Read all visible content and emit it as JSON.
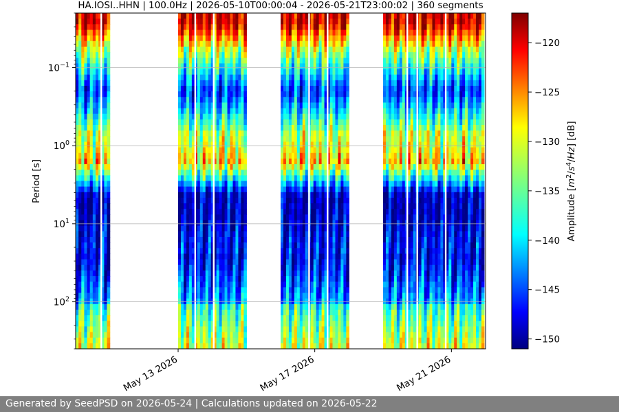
{
  "chart_data": {
    "type": "heatmap",
    "title": "HA.IOSI..HHN | 100.0Hz | 2026-05-10T00:00:04 - 2026-05-21T23:00:02 | 360 segments",
    "xlabel": "",
    "ylabel": "Period [s]",
    "x_range": [
      "2026-05-10T00:00:04",
      "2026-05-22T00:00:00"
    ],
    "x_ticks": [
      {
        "date": "2026-05-13",
        "label": "May 13 2026"
      },
      {
        "date": "2026-05-17",
        "label": "May 17 2026"
      },
      {
        "date": "2026-05-21",
        "label": "May 21 2026"
      }
    ],
    "y_scale": "log",
    "y_inverted": true,
    "y_range": [
      0.02,
      400
    ],
    "y_ticks": [
      {
        "value": 0.1,
        "base": "10",
        "exp": "−1"
      },
      {
        "value": 1,
        "base": "10",
        "exp": "0"
      },
      {
        "value": 10,
        "base": "10",
        "exp": "1"
      },
      {
        "value": 100,
        "base": "10",
        "exp": "2"
      }
    ],
    "grid": "horizontal",
    "data_segments": [
      {
        "start": "2026-05-10T00:00:04",
        "end": "2026-05-11T00:00:00"
      },
      {
        "start": "2026-05-13T00:00:00",
        "end": "2026-05-15T00:00:00"
      },
      {
        "start": "2026-05-16T00:00:00",
        "end": "2026-05-18T00:00:00"
      },
      {
        "start": "2026-05-19T00:00:00",
        "end": "2026-05-21T23:00:02"
      }
    ],
    "dropouts": [
      "2026-05-10T18:00:00",
      "2026-05-13T12:00:00",
      "2026-05-14T01:00:00",
      "2026-05-16T20:00:00",
      "2026-05-17T09:00:00",
      "2026-05-19T17:00:00",
      "2026-05-20T00:00:00",
      "2026-05-20T20:00:00"
    ],
    "colorbar": {
      "label_parts": [
        "Amplitude [",
        "m",
        "2",
        "/",
        "s",
        "4",
        "/",
        "Hz",
        "] [dB]"
      ],
      "range": [
        -151,
        -117
      ],
      "ticks": [
        -120,
        -125,
        -130,
        -135,
        -140,
        -145,
        -150
      ],
      "tick_labels": [
        "−120",
        "−125",
        "−130",
        "−135",
        "−140",
        "−145",
        "−150"
      ],
      "colormap": "jet"
    }
  },
  "footer": {
    "text": "Generated by SeedPSD on 2026-05-24 | Calculations updated on 2026-05-22"
  }
}
